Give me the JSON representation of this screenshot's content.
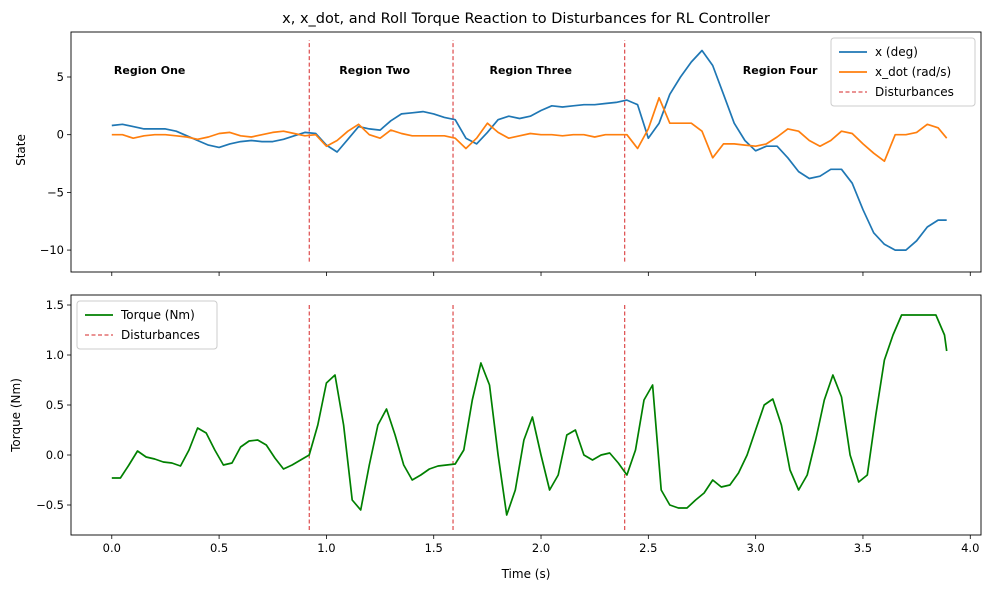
{
  "chart_data": [
    {
      "type": "line",
      "title": "x, x_dot, and Roll Torque Reaction to Disturbances for RL Controller",
      "xlabel": "",
      "ylabel": "State",
      "xlim": [
        -0.19,
        4.05
      ],
      "ylim": [
        -11.9,
        8.9
      ],
      "yticks": [
        -10,
        -5,
        0,
        5
      ],
      "ytick_labels": [
        "−10",
        "−5",
        "0",
        "5"
      ],
      "xticks": [
        0.0,
        0.5,
        1.0,
        1.5,
        2.0,
        2.5,
        3.0,
        3.5,
        4.0
      ],
      "grid": false,
      "legend": {
        "placement": "top-right",
        "entries": [
          {
            "label": "x (deg)",
            "color": "#1f77b4",
            "style": "solid"
          },
          {
            "label": "x_dot (rad/s)",
            "color": "#ff7f0e",
            "style": "solid"
          },
          {
            "label": "Disturbances",
            "color": "#d62728",
            "style": "dashed"
          }
        ]
      },
      "annotations": [
        {
          "text": "Region One",
          "x": 0.01,
          "y": 5.6
        },
        {
          "text": "Region Two",
          "x": 1.06,
          "y": 5.6
        },
        {
          "text": "Region Three",
          "x": 1.76,
          "y": 5.6
        },
        {
          "text": "Region Four",
          "x": 2.94,
          "y": 5.6
        }
      ],
      "disturbances": {
        "x": [
          0.92,
          1.59,
          2.39
        ],
        "y_range": [
          -11.0,
          8.2
        ]
      },
      "series": [
        {
          "name": "x (deg)",
          "color": "#1f77b4",
          "x": [
            0.0,
            0.05,
            0.1,
            0.15,
            0.2,
            0.25,
            0.3,
            0.35,
            0.4,
            0.45,
            0.5,
            0.55,
            0.6,
            0.65,
            0.7,
            0.75,
            0.8,
            0.85,
            0.9,
            0.95,
            1.0,
            1.05,
            1.1,
            1.15,
            1.2,
            1.25,
            1.3,
            1.35,
            1.4,
            1.45,
            1.5,
            1.55,
            1.6,
            1.65,
            1.7,
            1.75,
            1.8,
            1.85,
            1.9,
            1.95,
            2.0,
            2.05,
            2.1,
            2.15,
            2.2,
            2.25,
            2.3,
            2.35,
            2.4,
            2.45,
            2.5,
            2.55,
            2.6,
            2.65,
            2.7,
            2.75,
            2.8,
            2.85,
            2.9,
            2.95,
            3.0,
            3.05,
            3.1,
            3.15,
            3.2,
            3.25,
            3.3,
            3.35,
            3.4,
            3.45,
            3.5,
            3.55,
            3.6,
            3.65,
            3.7,
            3.75,
            3.8,
            3.85,
            3.89
          ],
          "values": [
            0.8,
            0.9,
            0.7,
            0.5,
            0.5,
            0.5,
            0.3,
            -0.1,
            -0.5,
            -0.9,
            -1.1,
            -0.8,
            -0.6,
            -0.5,
            -0.6,
            -0.6,
            -0.4,
            -0.1,
            0.2,
            0.1,
            -0.9,
            -1.5,
            -0.4,
            0.7,
            0.5,
            0.4,
            1.2,
            1.8,
            1.9,
            2.0,
            1.8,
            1.5,
            1.3,
            -0.3,
            -0.8,
            0.2,
            1.3,
            1.6,
            1.4,
            1.6,
            2.1,
            2.5,
            2.4,
            2.5,
            2.6,
            2.6,
            2.7,
            2.8,
            3.0,
            2.6,
            -0.3,
            1.0,
            3.5,
            5.0,
            6.3,
            7.3,
            6.0,
            3.5,
            1.0,
            -0.5,
            -1.4,
            -1.0,
            -1.0,
            -2.0,
            -3.2,
            -3.8,
            -3.6,
            -3.0,
            -3.0,
            -4.2,
            -6.5,
            -8.5,
            -9.5,
            -10.0,
            -10.0,
            -9.2,
            -8.0,
            -7.4,
            -7.4
          ]
        },
        {
          "name": "x_dot (rad/s)",
          "color": "#ff7f0e",
          "x": [
            0.0,
            0.05,
            0.1,
            0.15,
            0.2,
            0.25,
            0.3,
            0.35,
            0.4,
            0.45,
            0.5,
            0.55,
            0.6,
            0.65,
            0.7,
            0.75,
            0.8,
            0.85,
            0.9,
            0.95,
            1.0,
            1.05,
            1.1,
            1.15,
            1.2,
            1.25,
            1.3,
            1.35,
            1.4,
            1.45,
            1.5,
            1.55,
            1.6,
            1.65,
            1.7,
            1.75,
            1.8,
            1.85,
            1.9,
            1.95,
            2.0,
            2.05,
            2.1,
            2.15,
            2.2,
            2.25,
            2.3,
            2.35,
            2.4,
            2.45,
            2.5,
            2.55,
            2.6,
            2.65,
            2.7,
            2.75,
            2.8,
            2.85,
            2.9,
            2.95,
            3.0,
            3.05,
            3.1,
            3.15,
            3.2,
            3.25,
            3.3,
            3.35,
            3.4,
            3.45,
            3.5,
            3.55,
            3.6,
            3.65,
            3.7,
            3.75,
            3.8,
            3.85,
            3.89
          ],
          "values": [
            0.0,
            0.0,
            -0.3,
            -0.1,
            0.0,
            0.0,
            -0.1,
            -0.2,
            -0.4,
            -0.2,
            0.1,
            0.2,
            -0.1,
            -0.2,
            0.0,
            0.2,
            0.3,
            0.1,
            -0.1,
            0.0,
            -1.0,
            -0.5,
            0.3,
            0.9,
            0.0,
            -0.3,
            0.4,
            0.1,
            -0.1,
            -0.1,
            -0.1,
            -0.1,
            -0.3,
            -1.2,
            -0.3,
            1.0,
            0.2,
            -0.3,
            -0.1,
            0.1,
            0.0,
            0.0,
            -0.1,
            0.0,
            0.0,
            -0.2,
            0.0,
            0.0,
            0.0,
            -1.2,
            0.5,
            3.2,
            1.0,
            1.0,
            1.0,
            0.3,
            -2.0,
            -0.8,
            -0.8,
            -0.9,
            -1.0,
            -0.8,
            -0.2,
            0.5,
            0.3,
            -0.5,
            -1.0,
            -0.5,
            0.3,
            0.1,
            -0.8,
            -1.6,
            -2.3,
            0.0,
            0.0,
            0.2,
            0.9,
            0.6,
            -0.3
          ]
        }
      ]
    },
    {
      "type": "line",
      "title": "",
      "xlabel": "Time (s)",
      "ylabel": "Torque (Nm)",
      "xlim": [
        -0.19,
        4.05
      ],
      "ylim": [
        -0.8,
        1.6
      ],
      "yticks": [
        -0.5,
        0.0,
        0.5,
        1.0,
        1.5
      ],
      "ytick_labels": [
        "−0.5",
        "0.0",
        "0.5",
        "1.0",
        "1.5"
      ],
      "xticks": [
        0.0,
        0.5,
        1.0,
        1.5,
        2.0,
        2.5,
        3.0,
        3.5,
        4.0
      ],
      "xtick_labels": [
        "0.0",
        "0.5",
        "1.0",
        "1.5",
        "2.0",
        "2.5",
        "3.0",
        "3.5",
        "4.0"
      ],
      "grid": false,
      "legend": {
        "placement": "top-left",
        "entries": [
          {
            "label": "Torque (Nm)",
            "color": "#008000",
            "style": "solid"
          },
          {
            "label": "Disturbances",
            "color": "#d62728",
            "style": "dashed"
          }
        ]
      },
      "disturbances": {
        "x": [
          0.92,
          1.59,
          2.39
        ],
        "y_range": [
          -0.75,
          1.5
        ]
      },
      "series": [
        {
          "name": "Torque (Nm)",
          "color": "#008000",
          "x": [
            0.0,
            0.04,
            0.08,
            0.12,
            0.16,
            0.2,
            0.24,
            0.28,
            0.32,
            0.36,
            0.4,
            0.44,
            0.48,
            0.52,
            0.56,
            0.6,
            0.64,
            0.68,
            0.72,
            0.76,
            0.8,
            0.84,
            0.88,
            0.92,
            0.96,
            1.0,
            1.04,
            1.08,
            1.12,
            1.16,
            1.2,
            1.24,
            1.28,
            1.32,
            1.36,
            1.4,
            1.44,
            1.48,
            1.52,
            1.56,
            1.6,
            1.64,
            1.68,
            1.72,
            1.76,
            1.8,
            1.84,
            1.88,
            1.92,
            1.96,
            2.0,
            2.04,
            2.08,
            2.12,
            2.16,
            2.2,
            2.24,
            2.28,
            2.32,
            2.36,
            2.4,
            2.44,
            2.48,
            2.52,
            2.56,
            2.6,
            2.64,
            2.68,
            2.72,
            2.76,
            2.8,
            2.84,
            2.88,
            2.92,
            2.96,
            3.0,
            3.04,
            3.08,
            3.12,
            3.16,
            3.2,
            3.24,
            3.28,
            3.32,
            3.36,
            3.4,
            3.44,
            3.48,
            3.52,
            3.56,
            3.6,
            3.64,
            3.68,
            3.72,
            3.76,
            3.8,
            3.84,
            3.88,
            3.89
          ],
          "values": [
            -0.23,
            -0.23,
            -0.1,
            0.04,
            -0.02,
            -0.04,
            -0.07,
            -0.08,
            -0.11,
            0.05,
            0.27,
            0.22,
            0.05,
            -0.1,
            -0.08,
            0.08,
            0.14,
            0.15,
            0.1,
            -0.03,
            -0.14,
            -0.1,
            -0.05,
            0.0,
            0.3,
            0.72,
            0.8,
            0.3,
            -0.45,
            -0.55,
            -0.1,
            0.3,
            0.46,
            0.2,
            -0.1,
            -0.25,
            -0.2,
            -0.14,
            -0.11,
            -0.1,
            -0.09,
            0.05,
            0.55,
            0.92,
            0.7,
            0.0,
            -0.6,
            -0.35,
            0.15,
            0.38,
            0.0,
            -0.35,
            -0.2,
            0.2,
            0.25,
            0.0,
            -0.05,
            0.0,
            0.02,
            -0.08,
            -0.2,
            0.05,
            0.55,
            0.7,
            -0.35,
            -0.5,
            -0.53,
            -0.53,
            -0.45,
            -0.38,
            -0.25,
            -0.32,
            -0.3,
            -0.18,
            0.0,
            0.25,
            0.5,
            0.56,
            0.3,
            -0.15,
            -0.35,
            -0.2,
            0.15,
            0.55,
            0.8,
            0.58,
            0.0,
            -0.27,
            -0.2,
            0.4,
            0.95,
            1.2,
            1.4,
            1.4,
            1.4,
            1.4,
            1.4,
            1.2,
            1.04
          ]
        }
      ]
    }
  ]
}
